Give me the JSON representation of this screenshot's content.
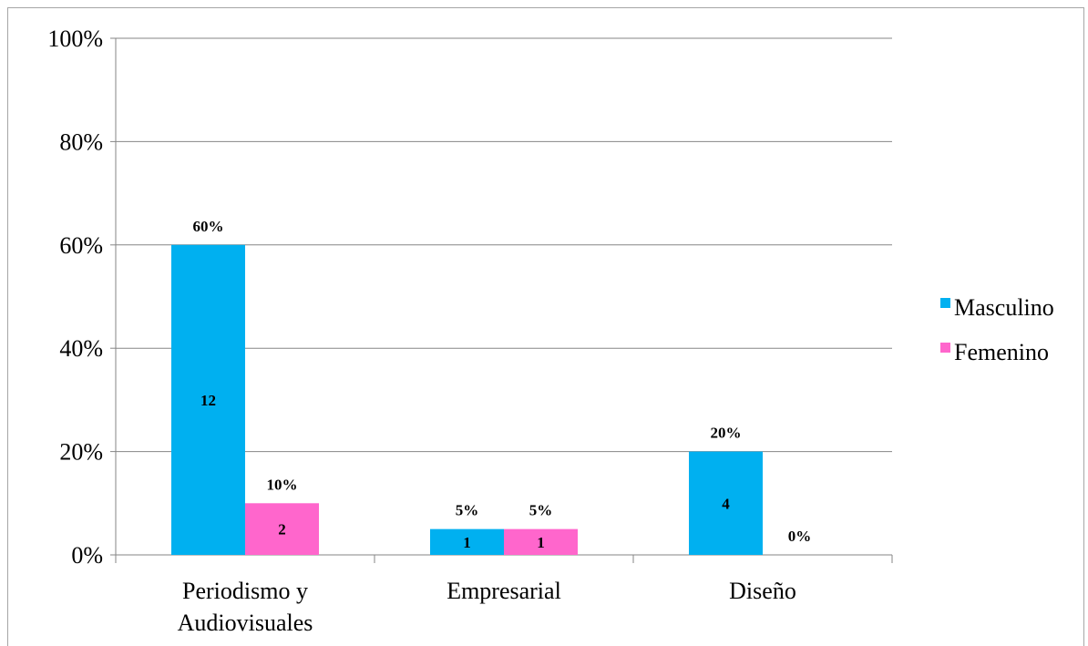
{
  "chart_data": {
    "type": "bar",
    "categories": [
      "Periodismo y Audiovisuales",
      "Empresarial",
      "Diseño"
    ],
    "category_label_lines": [
      [
        "Periodismo y",
        "Audiovisuales"
      ],
      [
        "Empresarial"
      ],
      [
        "Diseño"
      ]
    ],
    "series": [
      {
        "name": "Masculino",
        "color": "#00b0f0",
        "values": [
          60,
          5,
          20
        ],
        "counts": [
          "12",
          "1",
          "4"
        ],
        "labels": [
          "60%",
          "5%",
          "20%"
        ]
      },
      {
        "name": "Femenino",
        "color": "#ff66cc",
        "values": [
          10,
          5,
          0
        ],
        "counts": [
          "2",
          "1",
          ""
        ],
        "labels": [
          "10%",
          "5%",
          "0%"
        ]
      }
    ],
    "y_ticks": [
      "0%",
      "20%",
      "40%",
      "60%",
      "80%",
      "100%"
    ],
    "ylim": [
      0,
      100
    ],
    "grid": true,
    "legend_position": "right"
  }
}
